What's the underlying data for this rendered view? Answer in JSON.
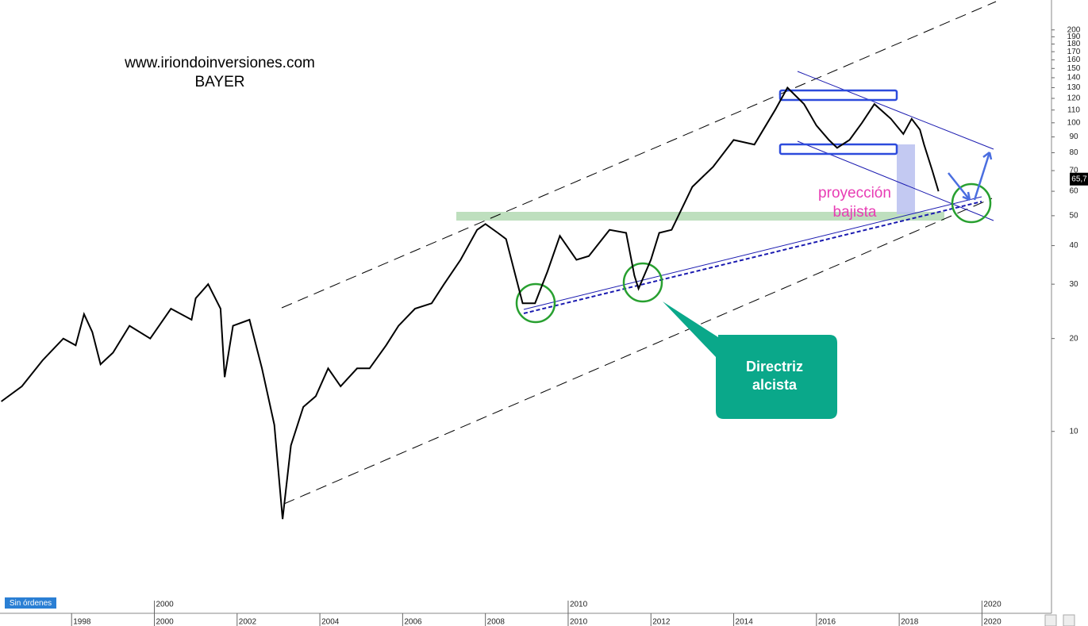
{
  "chart_data": {
    "type": "line",
    "title": "www.iriondoinversiones.com",
    "subtitle": "BAYER",
    "annotations": [
      "proyección",
      "bajista",
      "Directriz",
      "alcista"
    ],
    "status": "Sin órdenes",
    "color": "#000000",
    "log_scale": true,
    "x": [
      1996.3,
      1996.8,
      1997.3,
      1997.8,
      1998.1,
      1998.3,
      1998.5,
      1998.7,
      1999.0,
      1999.4,
      1999.9,
      2000.4,
      2000.9,
      2001.0,
      2001.3,
      2001.6,
      2001.7,
      2001.9,
      2002.3,
      2002.6,
      2002.9,
      2003.1,
      2003.3,
      2003.6,
      2003.9,
      2004.2,
      2004.5,
      2004.9,
      2005.2,
      2005.6,
      2005.9,
      2006.3,
      2006.7,
      2007.0,
      2007.4,
      2007.8,
      2008.0,
      2008.3,
      2008.5,
      2008.7,
      2008.9,
      2009.2,
      2009.5,
      2009.8,
      2010.2,
      2010.5,
      2011.0,
      2011.4,
      2011.6,
      2011.7,
      2012.0,
      2012.2,
      2012.5,
      2013.0,
      2013.5,
      2014.0,
      2014.5,
      2015.0,
      2015.3,
      2015.7,
      2016.0,
      2016.3,
      2016.5,
      2016.8,
      2017.1,
      2017.4,
      2017.8,
      2018.1,
      2018.3,
      2018.5,
      2018.6,
      2018.8,
      2018.95
    ],
    "values": [
      12.5,
      14,
      17,
      20,
      19,
      24,
      21,
      16.5,
      18,
      22,
      20,
      25,
      23,
      27,
      30,
      25,
      15,
      22,
      23,
      16,
      10.5,
      5.2,
      9,
      12,
      13,
      16,
      14,
      16,
      16,
      19,
      22,
      25,
      26,
      30,
      36,
      45,
      47,
      44,
      42,
      33,
      26,
      26,
      33,
      43,
      36,
      37,
      45,
      44,
      32,
      29,
      36,
      44,
      45,
      62,
      72,
      88,
      85,
      110,
      130,
      115,
      98,
      88,
      83,
      88,
      100,
      115,
      103,
      92,
      103,
      95,
      85,
      70,
      60
    ],
    "last_price": {
      "value": 65.7,
      "label": "65,7"
    },
    "xlim": [
      1996.27,
      2021.68
    ],
    "xticks": [
      1998,
      2000,
      2002,
      2004,
      2006,
      2008,
      2010,
      2012,
      2014,
      2016,
      2018,
      2020
    ],
    "decade_ticks": [
      2000,
      2010,
      2020
    ],
    "ylim": [
      2.62,
      250
    ],
    "yticks": [
      10,
      20,
      30,
      40,
      50,
      60,
      70,
      80,
      90,
      100,
      110,
      120,
      130,
      140,
      150,
      160,
      170,
      180,
      190,
      200
    ]
  }
}
